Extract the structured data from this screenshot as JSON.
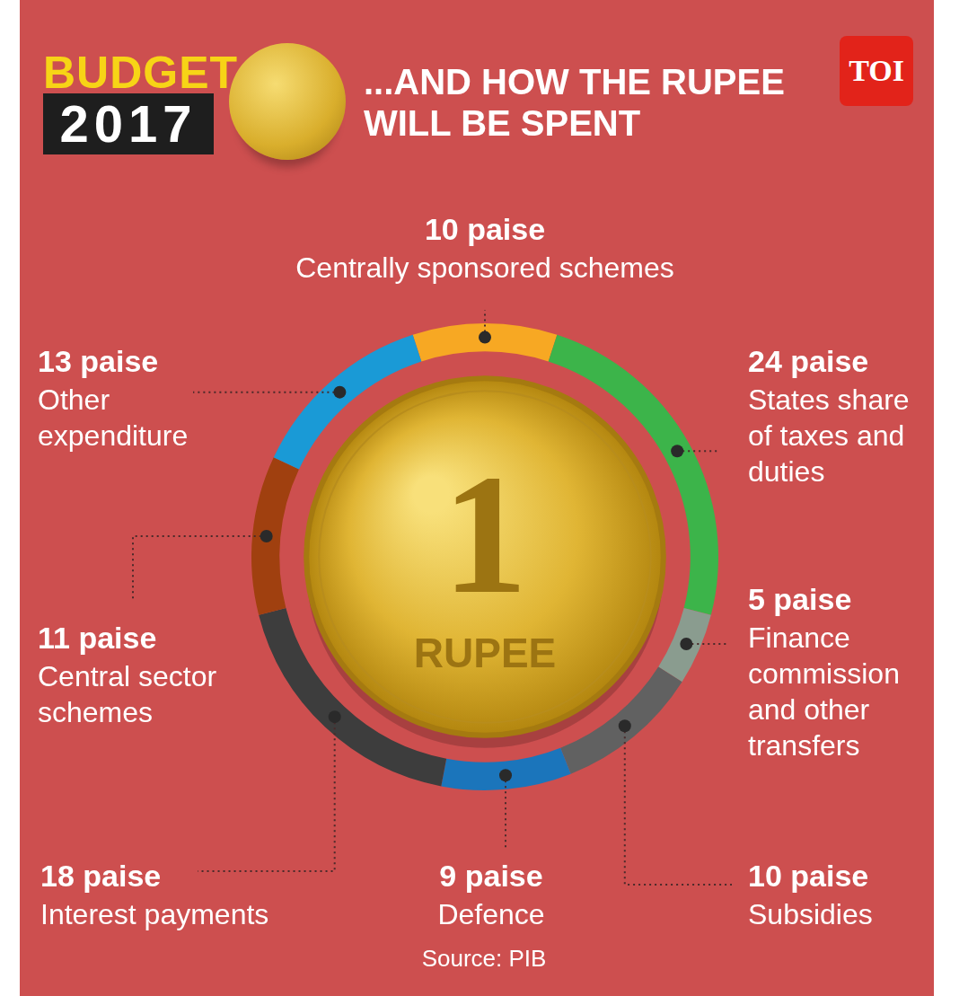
{
  "chart_data": {
    "type": "doughnut",
    "title": "...AND HOW THE RUPEE WILL BE SPENT",
    "categories": [
      "Centrally sponsored schemes",
      "States share of taxes and duties",
      "Finance commission and other transfers",
      "Subsidies",
      "Defence",
      "Interest payments",
      "Central sector schemes",
      "Other expenditure"
    ],
    "values": [
      10,
      24,
      5,
      10,
      9,
      18,
      11,
      13
    ],
    "value_labels": [
      "10 paise",
      "24 paise",
      "5 paise",
      "10 paise",
      "9 paise",
      "18 paise",
      "11 paise",
      "13 paise"
    ],
    "colors": [
      "#f7a823",
      "#3cb44a",
      "#8a9c8f",
      "#616161",
      "#1b75bb",
      "#3d3d3d",
      "#a0400f",
      "#1a9ad6"
    ],
    "data_labels": true
  },
  "header": {
    "label": "BUDGET",
    "year": "2017",
    "badge": "TOI"
  },
  "coin": {
    "value": "1",
    "label": "RUPEE"
  },
  "source": "Source: PIB"
}
